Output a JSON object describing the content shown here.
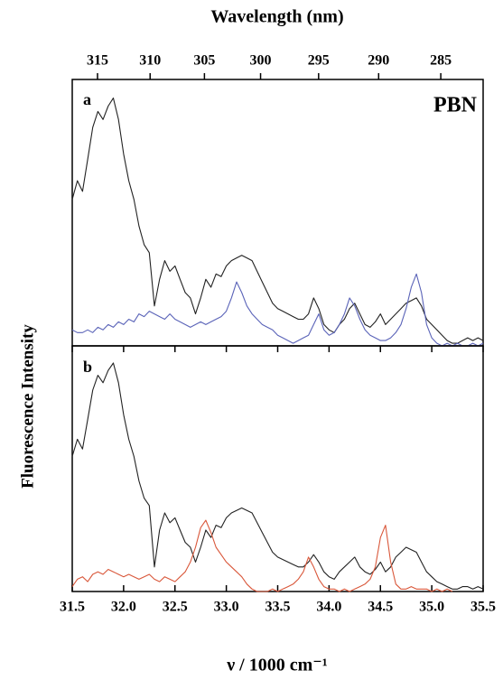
{
  "chart_data": [
    {
      "type": "line",
      "label": "a",
      "annotation": "PBN",
      "x2label": "Wavelength (nm)",
      "x2ticks": [
        315,
        310,
        305,
        300,
        295,
        290,
        285
      ],
      "ylabel": "Fluorescence Intensity",
      "xlim": [
        31.5,
        35.5
      ],
      "ylim": [
        0,
        100
      ],
      "x": [
        31.5,
        31.55,
        31.6,
        31.65,
        31.7,
        31.75,
        31.8,
        31.85,
        31.9,
        31.95,
        32.0,
        32.05,
        32.1,
        32.15,
        32.2,
        32.25,
        32.3,
        32.35,
        32.4,
        32.45,
        32.5,
        32.55,
        32.6,
        32.65,
        32.7,
        32.75,
        32.8,
        32.85,
        32.9,
        32.95,
        33.0,
        33.05,
        33.1,
        33.15,
        33.2,
        33.25,
        33.3,
        33.35,
        33.4,
        33.45,
        33.5,
        33.55,
        33.6,
        33.65,
        33.7,
        33.75,
        33.8,
        33.85,
        33.9,
        33.95,
        34.0,
        34.05,
        34.1,
        34.15,
        34.2,
        34.25,
        34.3,
        34.35,
        34.4,
        34.45,
        34.5,
        34.55,
        34.6,
        34.65,
        34.7,
        34.75,
        34.8,
        34.85,
        34.9,
        34.95,
        35.0,
        35.05,
        35.1,
        35.15,
        35.2,
        35.25,
        35.3,
        35.35,
        35.4,
        35.45,
        35.5
      ],
      "series": [
        {
          "color": "#222222",
          "values": [
            55,
            62,
            58,
            70,
            82,
            88,
            85,
            90,
            93,
            85,
            72,
            62,
            55,
            45,
            38,
            35,
            15,
            25,
            32,
            28,
            30,
            25,
            20,
            18,
            12,
            18,
            25,
            22,
            27,
            26,
            30,
            32,
            33,
            34,
            33,
            32,
            28,
            24,
            20,
            16,
            14,
            13,
            12,
            11,
            10,
            10,
            12,
            18,
            14,
            8,
            6,
            5,
            8,
            10,
            14,
            16,
            12,
            8,
            7,
            9,
            12,
            8,
            10,
            12,
            14,
            16,
            17,
            18,
            15,
            10,
            8,
            6,
            4,
            2,
            1,
            1,
            2,
            3,
            2,
            3,
            2
          ]
        },
        {
          "color": "#5a63b8",
          "values": [
            6,
            5,
            5,
            6,
            5,
            7,
            6,
            8,
            7,
            9,
            8,
            10,
            9,
            12,
            11,
            13,
            12,
            11,
            10,
            12,
            10,
            9,
            8,
            7,
            8,
            9,
            8,
            9,
            10,
            11,
            13,
            18,
            24,
            20,
            15,
            12,
            10,
            8,
            7,
            6,
            4,
            3,
            2,
            1,
            2,
            3,
            4,
            8,
            12,
            6,
            4,
            5,
            8,
            12,
            18,
            15,
            10,
            6,
            4,
            3,
            2,
            2,
            3,
            5,
            8,
            14,
            22,
            27,
            20,
            8,
            3,
            1,
            0,
            1,
            0,
            1,
            0,
            0,
            1,
            0,
            1
          ]
        }
      ]
    },
    {
      "type": "line",
      "label": "b",
      "xlabel": "ν / 1000 cm⁻¹",
      "xlim": [
        31.5,
        35.5
      ],
      "ylim": [
        0,
        100
      ],
      "xticks": [
        31.5,
        {
          "value": 32,
          "label": "32.0"
        },
        32.5,
        {
          "value": 33,
          "label": "33.0"
        },
        33.5,
        {
          "value": 34,
          "label": "34.0"
        },
        34.5,
        {
          "value": 35,
          "label": "35.0"
        },
        35.5
      ],
      "x": [
        31.5,
        31.55,
        31.6,
        31.65,
        31.7,
        31.75,
        31.8,
        31.85,
        31.9,
        31.95,
        32.0,
        32.05,
        32.1,
        32.15,
        32.2,
        32.25,
        32.3,
        32.35,
        32.4,
        32.45,
        32.5,
        32.55,
        32.6,
        32.65,
        32.7,
        32.75,
        32.8,
        32.85,
        32.9,
        32.95,
        33.0,
        33.05,
        33.1,
        33.15,
        33.2,
        33.25,
        33.3,
        33.35,
        33.4,
        33.45,
        33.5,
        33.55,
        33.6,
        33.65,
        33.7,
        33.75,
        33.8,
        33.85,
        33.9,
        33.95,
        34.0,
        34.05,
        34.1,
        34.15,
        34.2,
        34.25,
        34.3,
        34.35,
        34.4,
        34.45,
        34.5,
        34.55,
        34.6,
        34.65,
        34.7,
        34.75,
        34.8,
        34.85,
        34.9,
        34.95,
        35.0,
        35.05,
        35.1,
        35.15,
        35.2,
        35.25,
        35.3,
        35.35,
        35.4,
        35.45,
        35.5
      ],
      "series": [
        {
          "color": "#222222",
          "values": [
            55,
            62,
            58,
            70,
            82,
            88,
            85,
            90,
            93,
            85,
            72,
            62,
            55,
            45,
            38,
            35,
            10,
            25,
            32,
            28,
            30,
            25,
            20,
            18,
            12,
            18,
            25,
            22,
            27,
            26,
            30,
            32,
            33,
            34,
            33,
            32,
            28,
            24,
            20,
            16,
            14,
            13,
            12,
            11,
            10,
            10,
            12,
            15,
            12,
            8,
            6,
            5,
            8,
            10,
            12,
            14,
            10,
            8,
            7,
            9,
            12,
            8,
            10,
            14,
            16,
            18,
            17,
            16,
            12,
            8,
            6,
            4,
            3,
            2,
            1,
            1,
            2,
            2,
            1,
            2,
            1
          ]
        },
        {
          "color": "#d9573a",
          "values": [
            2,
            5,
            6,
            4,
            7,
            8,
            7,
            9,
            8,
            7,
            6,
            7,
            6,
            5,
            6,
            7,
            5,
            4,
            6,
            5,
            4,
            6,
            8,
            12,
            18,
            26,
            29,
            24,
            18,
            15,
            12,
            10,
            8,
            6,
            3,
            1,
            0,
            0,
            0,
            1,
            0,
            1,
            2,
            3,
            5,
            8,
            14,
            10,
            5,
            2,
            1,
            1,
            0,
            1,
            0,
            1,
            2,
            3,
            5,
            10,
            22,
            27,
            12,
            3,
            1,
            1,
            2,
            1,
            1,
            1,
            0,
            1,
            0,
            1,
            0,
            null,
            null,
            null,
            null,
            null,
            null
          ]
        }
      ]
    }
  ]
}
